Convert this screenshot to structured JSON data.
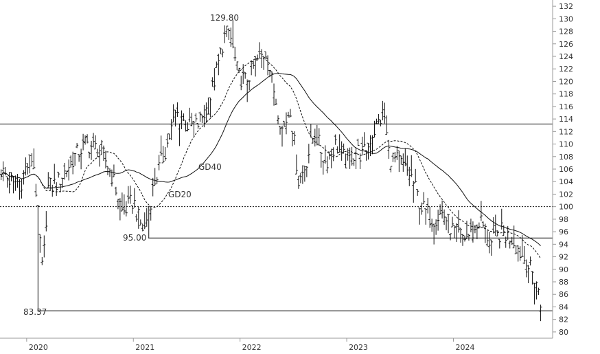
{
  "chart_data": {
    "type": "line",
    "subtype": "ohlc-bars-with-moving-averages",
    "x_ticks": [
      "2020",
      "2021",
      "2022",
      "2023",
      "2024"
    ],
    "y_ticks": [
      80,
      82,
      84,
      86,
      88,
      90,
      92,
      94,
      96,
      98,
      100,
      102,
      104,
      106,
      108,
      110,
      112,
      114,
      116,
      118,
      120,
      122,
      124,
      126,
      128,
      130,
      132
    ],
    "ylim": [
      79,
      133
    ],
    "xlim": [
      2019.75,
      2024.93
    ],
    "grid": false,
    "price_anchors": {
      "x": [
        2019.75,
        2019.85,
        2019.95,
        2019.99,
        2020.06,
        2020.1,
        2020.15,
        2020.2,
        2020.3,
        2020.45,
        2020.55,
        2020.7,
        2020.8,
        2020.9,
        2021.0,
        2021.05,
        2021.1,
        2021.2,
        2021.3,
        2021.4,
        2021.5,
        2021.6,
        2021.7,
        2021.8,
        2021.85,
        2021.9,
        2021.98,
        2022.05,
        2022.15,
        2022.25,
        2022.3,
        2022.4,
        2022.47,
        2022.55,
        2022.6,
        2022.7,
        2022.8,
        2022.9,
        2023.0,
        2023.1,
        2023.15,
        2023.25,
        2023.35,
        2023.4,
        2023.5,
        2023.6,
        2023.7,
        2023.8,
        2023.9,
        2024.0,
        2024.1,
        2024.2,
        2024.25,
        2024.35,
        2024.45,
        2024.55,
        2024.65,
        2024.72,
        2024.78,
        2024.82
      ],
      "y": [
        106,
        104,
        104,
        106,
        108,
        100,
        89,
        103,
        104,
        108,
        110,
        109,
        105,
        99,
        101,
        98,
        96,
        104,
        109,
        115,
        113,
        113,
        116,
        123,
        127,
        128,
        121,
        120,
        123,
        125,
        120,
        112,
        116,
        104,
        106,
        112,
        107,
        110,
        107,
        109,
        108,
        112,
        115,
        108,
        107,
        105,
        100,
        98,
        99,
        96,
        95,
        96,
        98,
        94,
        96,
        95,
        92,
        90,
        88,
        84
      ]
    },
    "labeled_levels": {
      "high_129_80": {
        "x": 2021.93,
        "y": 129.8
      },
      "low_83_37": {
        "x": 2020.1,
        "y": 83.37
      },
      "low_95_00": {
        "x": 2021.14,
        "y": 95.0
      }
    },
    "horizontal_lines": [
      {
        "y": 113.2,
        "style": "solid",
        "from": 2019.75
      },
      {
        "y": 100,
        "style": "dotted",
        "from": 2019.75
      },
      {
        "y": 95.0,
        "style": "solid",
        "from": 2021.14
      },
      {
        "y": 83.37,
        "style": "solid",
        "from": 2020.1
      }
    ],
    "moving_averages": [
      {
        "period": 20,
        "style": "dashed"
      },
      {
        "period": 40,
        "style": "solid"
      }
    ],
    "ma_labels": [
      {
        "label": "GD40",
        "x": 2021.6,
        "y": 106.0
      },
      {
        "label": "GD20",
        "x": 2021.33,
        "y": 101.5
      }
    ],
    "colors": {
      "bars": "#111111",
      "lines": "#111111",
      "axis_text": "#333333",
      "axis": "#999999",
      "background": "#ffffff"
    }
  },
  "labels": {
    "hi": "129.80",
    "lo1": "83.37",
    "lo2": "95.00",
    "gd40": "GD40",
    "gd20": "GD20"
  }
}
